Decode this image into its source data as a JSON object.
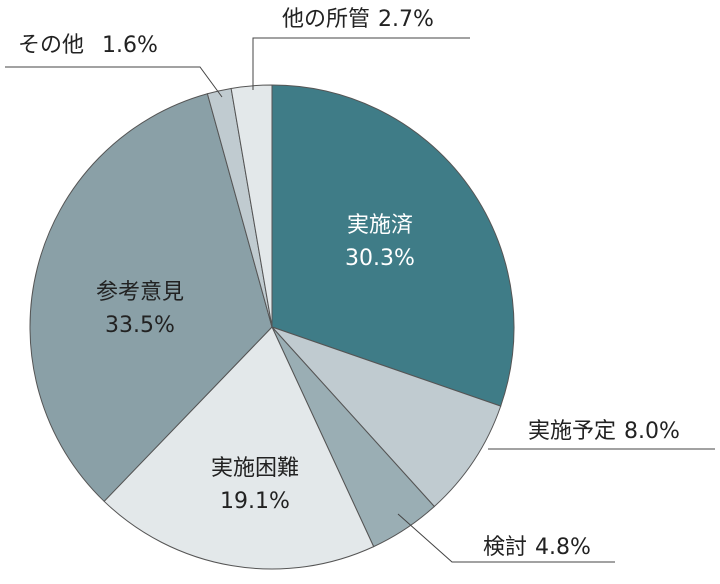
{
  "chart_data": {
    "type": "pie",
    "categories": [
      "実施済",
      "実施予定",
      "検討",
      "実施困難",
      "参考意見",
      "その他",
      "他の所管"
    ],
    "values": [
      30.3,
      8.0,
      4.8,
      19.1,
      33.5,
      1.6,
      2.7
    ],
    "value_labels": [
      "30.3%",
      "8.0%",
      "4.8%",
      "19.1%",
      "33.5%",
      "1.6%",
      "2.7%"
    ],
    "colors": [
      "#3f7c87",
      "#c0cbd0",
      "#9aaeb4",
      "#e3e8ea",
      "#8aa0a7",
      "#c0cbd0",
      "#e3e8ea"
    ]
  }
}
